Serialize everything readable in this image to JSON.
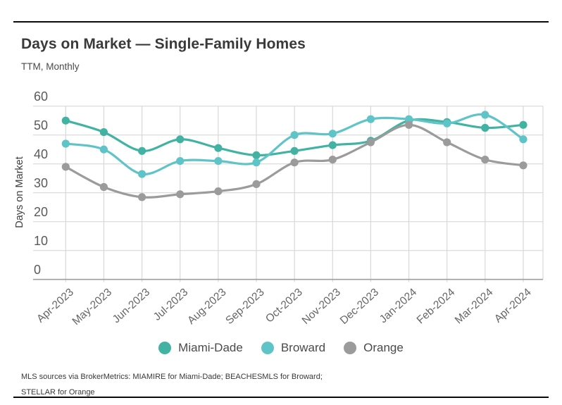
{
  "header": {
    "title": "Days on Market — Single-Family Homes",
    "subtitle": "TTM, Monthly"
  },
  "chart_data": {
    "type": "line",
    "title": "Days on Market — Single-Family Homes",
    "subtitle": "TTM, Monthly",
    "categories": [
      "Apr-2023",
      "May-2023",
      "Jun-2023",
      "Jul-2023",
      "Aug-2023",
      "Sep-2023",
      "Oct-2023",
      "Nov-2023",
      "Dec-2023",
      "Jan-2024",
      "Feb-2024",
      "Mar-2024",
      "Apr-2024"
    ],
    "series": [
      {
        "name": "Miami-Dade",
        "color": "#42b3a2",
        "values": [
          55,
          51,
          44.5,
          48.5,
          45.5,
          43,
          44.5,
          46.5,
          48,
          55,
          54.5,
          52.5,
          53.5
        ]
      },
      {
        "name": "Broward",
        "color": "#5fc4c8",
        "values": [
          47,
          45,
          36.5,
          41,
          41,
          40.5,
          50,
          50.5,
          55.5,
          55.5,
          54,
          57,
          48.5
        ]
      },
      {
        "name": "Orange",
        "color": "#9b9b9b",
        "values": [
          39,
          32,
          28.5,
          29.5,
          30.5,
          33,
          40.5,
          41.5,
          47.5,
          53.5,
          47.5,
          41.5,
          39.5
        ]
      }
    ],
    "xlabel": "",
    "ylabel": "Days on Market",
    "ylim": [
      0,
      60
    ],
    "yticks": [
      0,
      10,
      20,
      30,
      40,
      50,
      60
    ],
    "grid": true,
    "legend_position": "bottom",
    "colors": {
      "gridline": "#d8d8d8",
      "axis_line": "#9e9e9e",
      "tick_label": "#5a5a5a",
      "month_label": "#666666",
      "axis_title": "#3d3d3d"
    }
  },
  "footer": {
    "line1": "MLS sources via BrokerMetrics: MIAMIRE for Miami-Dade; BEACHESMLS for Broward;",
    "line2": "STELLAR for Orange"
  }
}
